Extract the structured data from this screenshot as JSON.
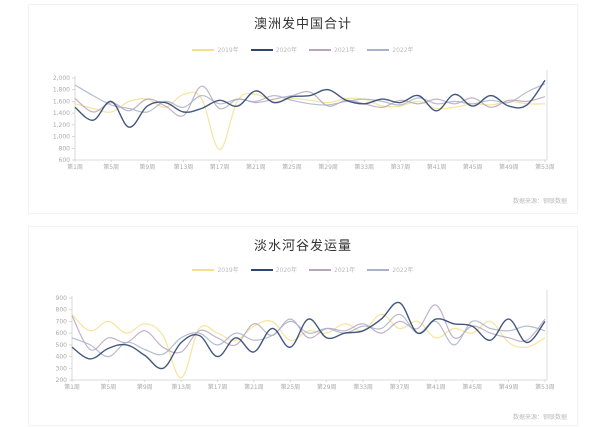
{
  "colors": {
    "2019": "#f5df8f",
    "2020": "#2e4670",
    "2021": "#b8a4bd",
    "2022": "#a7b2c8"
  },
  "charts": [
    {
      "title": "澳洲发中国合计",
      "legend": [
        "2019年",
        "2020年",
        "2021年",
        "2022年"
      ],
      "source": "数据来源：钢联数据"
    },
    {
      "title": "淡水河谷发运量",
      "legend": [
        "2019年",
        "2020年",
        "2021年",
        "2022年"
      ],
      "source": "数据来源：钢联数据"
    }
  ],
  "chart_data": [
    {
      "type": "line",
      "title": "澳洲发中国合计",
      "xlabel": "",
      "ylabel": "",
      "ylim": [
        600,
        2000
      ],
      "yticks": [
        "600",
        "800",
        "1,000",
        "1,200",
        "1,400",
        "1,600",
        "1,800",
        "2,000"
      ],
      "xticks": [
        "第1周",
        "第5周",
        "第9周",
        "第13周",
        "第17周",
        "第21周",
        "第25周",
        "第29周",
        "第33周",
        "第37周",
        "第41周",
        "第45周",
        "第49周",
        "第53周"
      ],
      "legend_position": "top",
      "grid": false,
      "x": [
        1,
        3,
        5,
        7,
        9,
        11,
        13,
        15,
        17,
        19,
        21,
        23,
        25,
        27,
        29,
        31,
        33,
        35,
        37,
        39,
        41,
        43,
        45,
        47,
        49,
        51,
        53
      ],
      "series": [
        {
          "name": "2019年",
          "values": [
            1560,
            1480,
            1420,
            1600,
            1640,
            1500,
            1720,
            1650,
            780,
            1620,
            1720,
            1600,
            1650,
            1620,
            1580,
            1650,
            1640,
            1520,
            1520,
            1600,
            1480,
            1500,
            1560,
            1540,
            1600,
            1560,
            1560
          ]
        },
        {
          "name": "2020年",
          "values": [
            1500,
            1280,
            1600,
            1160,
            1520,
            1580,
            1420,
            1480,
            1620,
            1520,
            1780,
            1580,
            1680,
            1700,
            1800,
            1620,
            1560,
            1640,
            1580,
            1700,
            1440,
            1720,
            1520,
            1700,
            1520,
            1540,
            1960
          ]
        },
        {
          "name": "2021年",
          "values": [
            1650,
            1420,
            1580,
            1440,
            1640,
            1520,
            1360,
            1860,
            1480,
            1640,
            1580,
            1640,
            1700,
            1760,
            1520,
            1620,
            1560,
            1500,
            1620,
            1560,
            1640,
            1560,
            1660,
            1500,
            1620,
            1600,
            1680
          ]
        },
        {
          "name": "2022年",
          "values": [
            1880,
            1700,
            1540,
            1480,
            1420,
            1600,
            1500,
            1700,
            1560,
            1640,
            1600,
            1700,
            1620,
            1560,
            1540,
            1600,
            1640,
            1600,
            1540,
            1660,
            1560,
            1600,
            1560,
            1620,
            1580,
            1760,
            1900
          ]
        }
      ]
    },
    {
      "type": "line",
      "title": "淡水河谷发运量",
      "xlabel": "",
      "ylabel": "",
      "ylim": [
        200,
        900
      ],
      "yticks": [
        "200",
        "300",
        "400",
        "500",
        "600",
        "700",
        "800",
        "900"
      ],
      "xticks": [
        "第1周",
        "第5周",
        "第9周",
        "第13周",
        "第17周",
        "第21周",
        "第25周",
        "第29周",
        "第33周",
        "第37周",
        "第41周",
        "第45周",
        "第49周",
        "第53周"
      ],
      "legend_position": "top",
      "grid": false,
      "x": [
        1,
        3,
        5,
        7,
        9,
        11,
        13,
        15,
        17,
        19,
        21,
        23,
        25,
        27,
        29,
        31,
        33,
        35,
        37,
        39,
        41,
        43,
        45,
        47,
        49,
        51,
        53
      ],
      "series": [
        {
          "name": "2019年",
          "values": [
            760,
            620,
            700,
            600,
            680,
            580,
            220,
            640,
            600,
            540,
            660,
            700,
            540,
            620,
            600,
            680,
            620,
            760,
            640,
            700,
            560,
            640,
            600,
            700,
            520,
            480,
            560
          ]
        },
        {
          "name": "2020年",
          "values": [
            480,
            380,
            470,
            500,
            410,
            300,
            520,
            580,
            400,
            560,
            440,
            640,
            480,
            720,
            560,
            600,
            620,
            720,
            860,
            600,
            720,
            680,
            660,
            540,
            720,
            520,
            700
          ]
        },
        {
          "name": "2021年",
          "values": [
            750,
            460,
            560,
            520,
            620,
            480,
            440,
            620,
            560,
            500,
            680,
            580,
            720,
            560,
            640,
            620,
            680,
            600,
            700,
            640,
            840,
            560,
            660,
            600,
            560,
            540,
            720
          ]
        },
        {
          "name": "2022年",
          "values": [
            560,
            500,
            400,
            520,
            460,
            420,
            560,
            600,
            500,
            600,
            540,
            580,
            700,
            600,
            640,
            600,
            660,
            640,
            760,
            600,
            700,
            500,
            700,
            640,
            620,
            660,
            620
          ]
        }
      ]
    }
  ]
}
